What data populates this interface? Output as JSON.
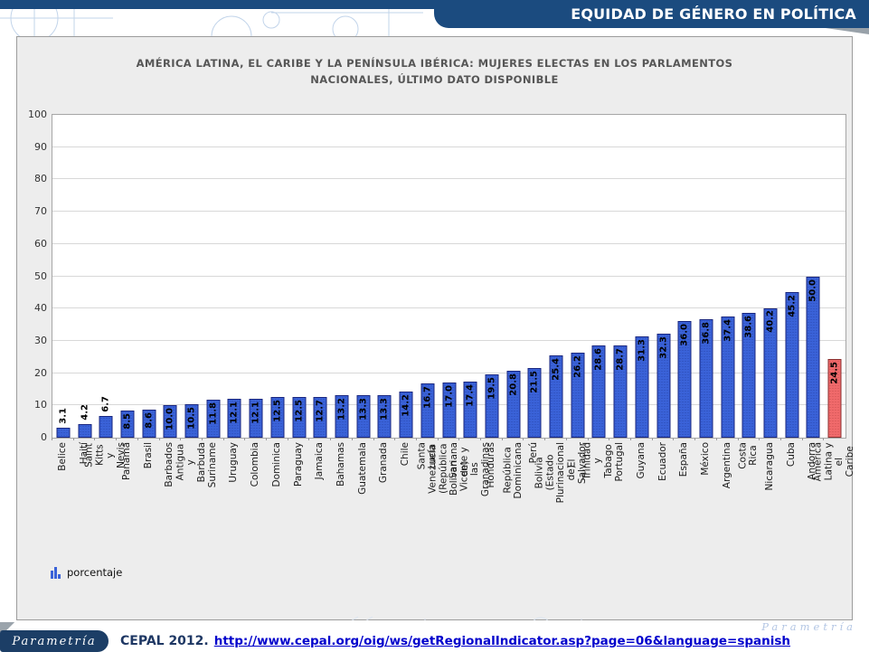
{
  "header": {
    "title": "EQUIDAD DE GÉNERO EN POLÍTICA"
  },
  "chart": {
    "title_line1": "AMÉRICA LATINA, EL CARIBE Y LA PENÍNSULA IBÉRICA: MUJERES ELECTAS EN LOS PARLAMENTOS",
    "title_line2": "NACIONALES, ÚLTIMO DATO DISPONIBLE"
  },
  "chart_data": {
    "type": "bar",
    "title": "AMÉRICA LATINA, EL CARIBE Y LA PENÍNSULA IBÉRICA: MUJERES ELECTAS EN LOS PARLAMENTOS NACIONALES, ÚLTIMO DATO DISPONIBLE",
    "categories": [
      "Belice",
      "Haití",
      "Saint Kitts y Nevis",
      "Panamá",
      "Brasil",
      "Barbados",
      "Antigua y Barbuda",
      "Suriname",
      "Uruguay",
      "Colombia",
      "Dominica",
      "Paraguay",
      "Jamaica",
      "Bahamas",
      "Guatemala",
      "Granada",
      "Chile",
      "Santa Lucía",
      "Venezuela (República\nBolivariana de)",
      "San Vicente y las\nGranadinas",
      "Honduras",
      "República Dominicana",
      "Perú",
      "Bolivia (Estado\nPlurinacional de)",
      "El Salvador",
      "Trinidad y Tabago",
      "Portugal",
      "Guyana",
      "Ecuador",
      "España",
      "México",
      "Argentina",
      "Costa Rica",
      "Nicaragua",
      "Cuba",
      "Andorra",
      "América Latina y el\nCaribe"
    ],
    "values": [
      3.1,
      4.2,
      6.7,
      8.5,
      8.6,
      10.0,
      10.5,
      11.8,
      12.1,
      12.1,
      12.5,
      12.5,
      12.7,
      13.2,
      13.3,
      13.3,
      14.2,
      16.7,
      17.0,
      17.4,
      19.5,
      20.8,
      21.5,
      25.4,
      26.2,
      28.6,
      28.7,
      31.3,
      32.3,
      36.0,
      36.8,
      37.4,
      38.6,
      40.2,
      45.2,
      50.0,
      24.5
    ],
    "highlight_index": 36,
    "ylim": [
      0,
      100
    ],
    "ytick_step": 10,
    "yticks": [
      0,
      10,
      20,
      30,
      40,
      50,
      60,
      70,
      80,
      90,
      100
    ],
    "grid": true,
    "xlabel": "",
    "ylabel": "",
    "value_label_outside_threshold": 8,
    "legend": {
      "label": "porcentaje",
      "position": "bottom-left"
    },
    "colors": {
      "bar_default": "#3A62D8",
      "bar_highlight": "#F06A6B",
      "bar_border": "#18257E",
      "bar_highlight_border": "#8A3030"
    }
  },
  "legend": {
    "label": "porcentaje"
  },
  "footer": {
    "logo": "Parametría",
    "watermark": "Parametría",
    "source_label": "CEPAL 2012.",
    "source_link": "http://www.cepal.org/oig/ws/getRegionalIndicator.asp?page=06&language=spanish"
  },
  "colors": {
    "header_navy": "#1B4B7F",
    "footer_navy": "#1C3E66",
    "link_blue": "#0000CC",
    "panel_bg": "#EDEDED"
  }
}
